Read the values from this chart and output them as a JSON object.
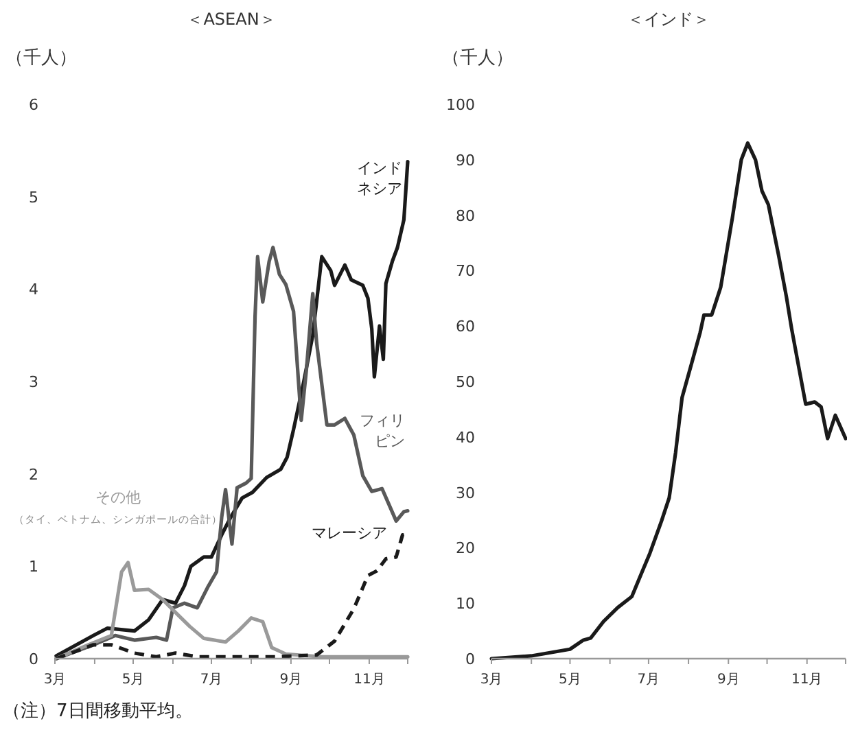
{
  "chart_data": [
    {
      "type": "line",
      "title": "＜ASEAN＞",
      "ylabel": "（千人）",
      "xlim": [
        "--03-01",
        "--12-01"
      ],
      "xticks": [
        {
          "value": "--03-01",
          "label": "3月"
        },
        {
          "value": "--04-01",
          "label": null
        },
        {
          "value": "--05-01",
          "label": "5月"
        },
        {
          "value": "--06-01",
          "label": null
        },
        {
          "value": "--07-01",
          "label": "7月"
        },
        {
          "value": "--08-01",
          "label": null
        },
        {
          "value": "--09-01",
          "label": "9月"
        },
        {
          "value": "--10-01",
          "label": null
        },
        {
          "value": "--11-01",
          "label": "11月"
        },
        {
          "value": "--12-01",
          "label": null
        }
      ],
      "ylim": [
        0,
        6
      ],
      "yticks": [
        0,
        1,
        2,
        3,
        4,
        5,
        6
      ],
      "grid": false,
      "annotations": [
        "（タイ、ベトナム、シンガポールの合計）",
        "（注）7日間移動平均。"
      ],
      "series": [
        {
          "name": "インドネシア",
          "color": "#1a1a1a",
          "line_style": "solid",
          "x": [
            "--03-02",
            "--03-31",
            "--04-11",
            "--05-02",
            "--05-13",
            "--05-24",
            "--06-03",
            "--06-10",
            "--06-15",
            "--06-25",
            "--07-01",
            "--07-09",
            "--07-16",
            "--07-25",
            "--08-02",
            "--08-13",
            "--08-24",
            "--08-29",
            "--09-03",
            "--09-11",
            "--09-18",
            "--09-25",
            "--10-02",
            "--10-05",
            "--10-13",
            "--10-18",
            "--10-27",
            "--10-31",
            "--11-03",
            "--11-05",
            "--11-09",
            "--11-12",
            "--11-14",
            "--11-19",
            "--11-23",
            "--11-28",
            "--12-01"
          ],
          "values": [
            0.03,
            0.25,
            0.33,
            0.3,
            0.42,
            0.64,
            0.6,
            0.79,
            1.0,
            1.1,
            1.1,
            1.34,
            1.53,
            1.74,
            1.8,
            1.96,
            2.05,
            2.18,
            2.48,
            3.0,
            3.5,
            4.35,
            4.2,
            4.04,
            4.26,
            4.1,
            4.04,
            3.9,
            3.57,
            3.05,
            3.6,
            3.24,
            4.06,
            4.3,
            4.45,
            4.75,
            5.38
          ]
        },
        {
          "name": "フィリピン",
          "color": "#595959",
          "line_style": "solid",
          "x": [
            "--03-02",
            "--03-31",
            "--04-17",
            "--05-02",
            "--05-19",
            "--05-27",
            "--06-01",
            "--06-10",
            "--06-20",
            "--06-28",
            "--07-05",
            "--07-09",
            "--07-12",
            "--07-17",
            "--07-21",
            "--07-28",
            "--08-01",
            "--08-04",
            "--08-06",
            "--08-10",
            "--08-15",
            "--08-18",
            "--08-23",
            "--08-28",
            "--09-03",
            "--09-09",
            "--09-13",
            "--09-18",
            "--09-21",
            "--09-29",
            "--10-05",
            "--10-13",
            "--10-20",
            "--10-27",
            "--11-03",
            "--11-11",
            "--11-22",
            "--11-28",
            "--12-01"
          ],
          "values": [
            0.0,
            0.15,
            0.25,
            0.2,
            0.23,
            0.2,
            0.55,
            0.6,
            0.55,
            0.77,
            0.94,
            1.53,
            1.83,
            1.24,
            1.85,
            1.9,
            1.95,
            3.7,
            4.35,
            3.86,
            4.3,
            4.45,
            4.16,
            4.05,
            3.76,
            2.58,
            3.12,
            3.95,
            3.42,
            2.53,
            2.53,
            2.6,
            2.42,
            1.98,
            1.81,
            1.84,
            1.49,
            1.59,
            1.6
          ]
        },
        {
          "name": "その他",
          "color": "#9a9a9a",
          "line_style": "solid",
          "x": [
            "--03-02",
            "--03-27",
            "--04-14",
            "--04-22",
            "--04-27",
            "--05-02",
            "--05-13",
            "--05-24",
            "--06-03",
            "--06-14",
            "--06-25",
            "--07-12",
            "--07-22",
            "--08-01",
            "--08-10",
            "--08-17",
            "--08-28",
            "--09-25",
            "--12-01"
          ],
          "values": [
            0.0,
            0.15,
            0.25,
            0.94,
            1.04,
            0.74,
            0.75,
            0.64,
            0.5,
            0.35,
            0.22,
            0.18,
            0.3,
            0.44,
            0.4,
            0.12,
            0.05,
            0.02,
            0.02
          ]
        },
        {
          "name": "マレーシア",
          "color": "#1a1a1a",
          "line_style": "dashed",
          "x": [
            "--03-02",
            "--03-31",
            "--04-14",
            "--05-02",
            "--05-19",
            "--06-03",
            "--06-20",
            "--08-20",
            "--09-21",
            "--10-05",
            "--10-20",
            "--10-31",
            "--11-07",
            "--11-14",
            "--11-22",
            "--11-27",
            "--12-01"
          ],
          "values": [
            0.0,
            0.15,
            0.15,
            0.06,
            0.02,
            0.06,
            0.02,
            0.02,
            0.04,
            0.19,
            0.54,
            0.9,
            0.95,
            1.08,
            1.1,
            1.34,
            1.3
          ]
        }
      ]
    },
    {
      "type": "line",
      "title": "＜インド＞",
      "ylabel": "（千人）",
      "xlim": [
        "--03-01",
        "--12-01"
      ],
      "xticks": [
        {
          "value": "--03-01",
          "label": "3月"
        },
        {
          "value": "--04-01",
          "label": null
        },
        {
          "value": "--05-01",
          "label": "5月"
        },
        {
          "value": "--06-01",
          "label": null
        },
        {
          "value": "--07-01",
          "label": "7月"
        },
        {
          "value": "--08-01",
          "label": null
        },
        {
          "value": "--09-01",
          "label": "9月"
        },
        {
          "value": "--10-01",
          "label": null
        },
        {
          "value": "--11-01",
          "label": "11月"
        },
        {
          "value": "--12-01",
          "label": null
        }
      ],
      "ylim": [
        0,
        100
      ],
      "yticks": [
        0,
        10,
        20,
        30,
        40,
        50,
        60,
        70,
        80,
        90,
        100
      ],
      "grid": false,
      "series": [
        {
          "color": "#1a1a1a",
          "line_style": "solid",
          "x": [
            "--03-01",
            "--04-01",
            "--05-01",
            "--05-11",
            "--05-17",
            "--05-27",
            "--06-07",
            "--06-18",
            "--06-26",
            "--07-02",
            "--07-11",
            "--07-17",
            "--07-22",
            "--07-27",
            "--08-03",
            "--08-10",
            "--08-13",
            "--08-19",
            "--08-26",
            "--09-04",
            "--09-11",
            "--09-16",
            "--09-22",
            "--09-27",
            "--10-02",
            "--10-10",
            "--10-16",
            "--10-20",
            "--10-26",
            "--10-31",
            "--11-07",
            "--11-12",
            "--11-17",
            "--11-23",
            "--12-01"
          ],
          "values": [
            0,
            0.5,
            1.7,
            3.3,
            3.7,
            6.7,
            9.2,
            11.2,
            15.7,
            19,
            24.8,
            29,
            37.2,
            47.1,
            52.9,
            58.8,
            62,
            62,
            67,
            79.4,
            90,
            93,
            90,
            84.4,
            81.9,
            72.7,
            65.3,
            59.6,
            52.1,
            45.9,
            46.3,
            45.4,
            39.7,
            43.9,
            39.7
          ]
        }
      ]
    }
  ]
}
